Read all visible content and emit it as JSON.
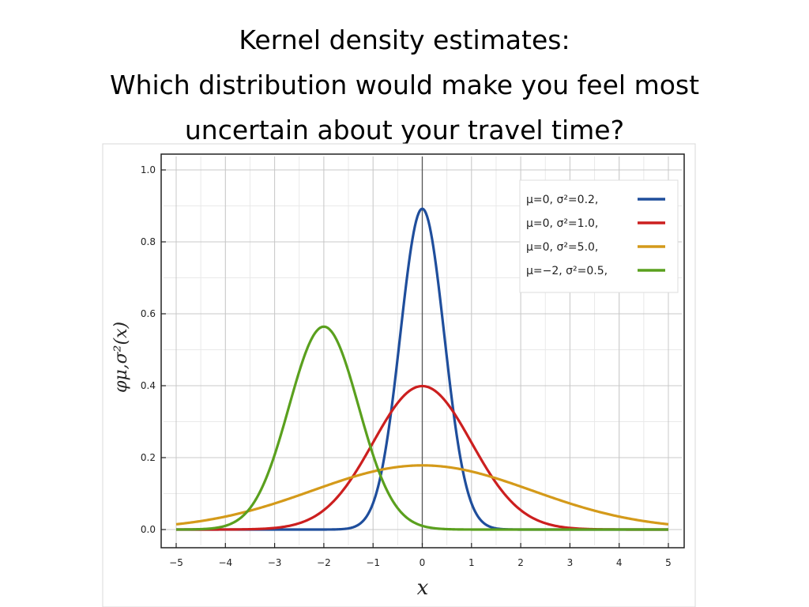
{
  "slide": {
    "title_line1": "Kernel density estimates:",
    "title_line2": "Which distribution would make you feel most",
    "title_line3": "uncertain about your travel time?"
  },
  "chart_data": {
    "type": "line",
    "xlabel": "x",
    "ylabel": "φμ,σ²(x)",
    "xlim": [
      -5,
      5
    ],
    "ylim": [
      0,
      1.0
    ],
    "x_ticks": [
      "−5",
      "−4",
      "−3",
      "−2",
      "−1",
      "0",
      "1",
      "2",
      "3",
      "4",
      "5"
    ],
    "y_ticks": [
      "0.0",
      "0.2",
      "0.4",
      "0.6",
      "0.8",
      "1.0"
    ],
    "grid": true,
    "legend_position": "top-right",
    "series": [
      {
        "name": "μ=0,   σ²=0.2,",
        "mu": 0,
        "variance": 0.2,
        "color": "#1f4e9c",
        "x": [
          -5,
          -4.5,
          -4,
          -3.5,
          -3,
          -2.5,
          -2,
          -1.5,
          -1,
          -0.75,
          -0.5,
          -0.25,
          0,
          0.25,
          0.5,
          0.75,
          1,
          1.5,
          2,
          2.5,
          3,
          3.5,
          4,
          4.5,
          5
        ],
        "y": [
          0,
          0,
          0,
          0,
          0,
          0,
          0,
          0.003,
          0.073,
          0.219,
          0.48,
          0.76,
          0.892,
          0.76,
          0.48,
          0.219,
          0.073,
          0.003,
          0,
          0,
          0,
          0,
          0,
          0,
          0
        ]
      },
      {
        "name": "μ=0,   σ²=1.0,",
        "mu": 0,
        "variance": 1.0,
        "color": "#cc1f1f",
        "x": [
          -5,
          -4.5,
          -4,
          -3.5,
          -3,
          -2.5,
          -2,
          -1.5,
          -1,
          -0.5,
          0,
          0.5,
          1,
          1.5,
          2,
          2.5,
          3,
          3.5,
          4,
          4.5,
          5
        ],
        "y": [
          0,
          0,
          0,
          0.001,
          0.004,
          0.018,
          0.054,
          0.13,
          0.242,
          0.352,
          0.399,
          0.352,
          0.242,
          0.13,
          0.054,
          0.018,
          0.004,
          0.001,
          0,
          0,
          0
        ]
      },
      {
        "name": "μ=0,   σ²=5.0,",
        "mu": 0,
        "variance": 5.0,
        "color": "#d49a1a",
        "x": [
          -5,
          -4.5,
          -4,
          -3.5,
          -3,
          -2.5,
          -2,
          -1.5,
          -1,
          -0.5,
          0,
          0.5,
          1,
          1.5,
          2,
          2.5,
          3,
          3.5,
          4,
          4.5,
          5
        ],
        "y": [
          0.015,
          0.024,
          0.035,
          0.053,
          0.073,
          0.096,
          0.12,
          0.143,
          0.161,
          0.174,
          0.178,
          0.174,
          0.161,
          0.143,
          0.12,
          0.096,
          0.073,
          0.053,
          0.035,
          0.024,
          0.015
        ]
      },
      {
        "name": "μ=−2, σ²=0.5,",
        "mu": -2,
        "variance": 0.5,
        "color": "#5aa01e",
        "x": [
          -5,
          -4.5,
          -4,
          -3.5,
          -3,
          -2.5,
          -2,
          -1.5,
          -1,
          -0.5,
          0,
          0.5,
          1,
          1.5,
          2,
          2.5,
          3,
          3.5,
          4,
          4.5,
          5
        ],
        "y": [
          0,
          0,
          0.01,
          0.059,
          0.208,
          0.439,
          0.564,
          0.439,
          0.208,
          0.059,
          0.01,
          0,
          0,
          0,
          0,
          0,
          0,
          0,
          0,
          0,
          0
        ]
      }
    ]
  }
}
